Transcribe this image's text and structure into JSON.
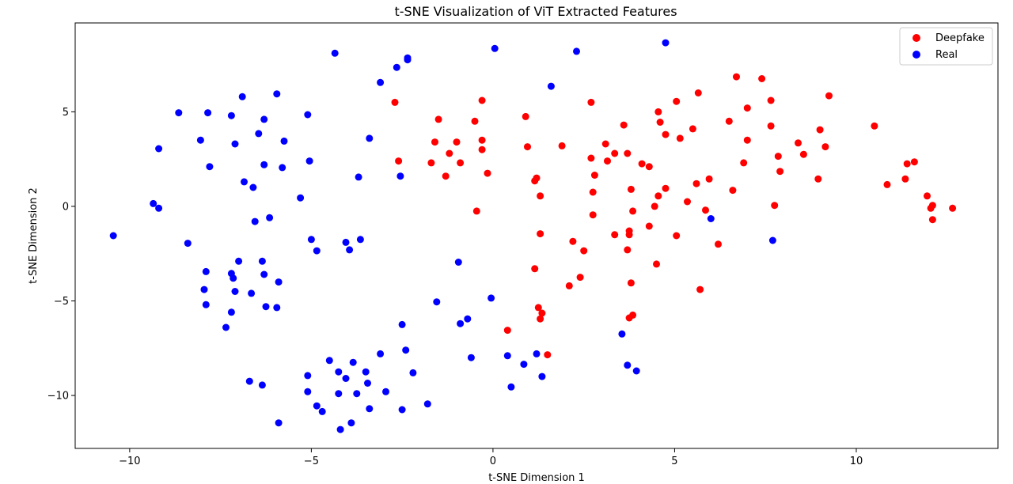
{
  "chart_data": {
    "type": "scatter",
    "title": "t-SNE Visualization of ViT Extracted Features",
    "xlabel": "t-SNE Dimension 1",
    "ylabel": "t-SNE Dimension 2",
    "xlim": [
      -11.5,
      13.9
    ],
    "ylim": [
      -12.8,
      9.7
    ],
    "xticks": [
      -10,
      -5,
      0,
      5,
      10
    ],
    "yticks": [
      -10,
      -5,
      0,
      5
    ],
    "grid": false,
    "legend_position": "top-right",
    "series": [
      {
        "name": "Deepfake",
        "color": "#ff0000",
        "points": [
          [
            -2.7,
            5.5
          ],
          [
            -2.6,
            2.4
          ],
          [
            -1.5,
            4.6
          ],
          [
            -1.6,
            3.4
          ],
          [
            -1.7,
            2.3
          ],
          [
            -1.2,
            2.8
          ],
          [
            -1.3,
            1.6
          ],
          [
            -1.0,
            3.4
          ],
          [
            -0.9,
            2.3
          ],
          [
            -0.5,
            4.5
          ],
          [
            -0.3,
            5.6
          ],
          [
            -0.3,
            3.5
          ],
          [
            -0.3,
            3.0
          ],
          [
            -0.15,
            1.75
          ],
          [
            -0.45,
            -0.25
          ],
          [
            0.9,
            4.75
          ],
          [
            0.95,
            3.15
          ],
          [
            1.15,
            1.35
          ],
          [
            1.2,
            1.5
          ],
          [
            1.3,
            0.55
          ],
          [
            1.3,
            -1.45
          ],
          [
            1.15,
            -3.3
          ],
          [
            1.25,
            -5.35
          ],
          [
            1.3,
            -5.95
          ],
          [
            1.35,
            -5.65
          ],
          [
            1.5,
            -7.85
          ],
          [
            0.4,
            -6.55
          ],
          [
            1.9,
            3.2
          ],
          [
            2.7,
            5.5
          ],
          [
            2.7,
            2.55
          ],
          [
            2.8,
            1.65
          ],
          [
            2.75,
            0.75
          ],
          [
            2.75,
            -0.45
          ],
          [
            2.2,
            -1.85
          ],
          [
            2.1,
            -4.2
          ],
          [
            2.5,
            -2.35
          ],
          [
            2.4,
            -3.75
          ],
          [
            3.1,
            3.3
          ],
          [
            3.35,
            2.8
          ],
          [
            3.15,
            2.4
          ],
          [
            3.35,
            -1.5
          ],
          [
            3.6,
            4.3
          ],
          [
            3.7,
            2.8
          ],
          [
            3.8,
            0.9
          ],
          [
            3.85,
            -0.25
          ],
          [
            3.75,
            -1.3
          ],
          [
            3.75,
            -1.5
          ],
          [
            3.7,
            -2.3
          ],
          [
            3.8,
            -4.05
          ],
          [
            3.75,
            -5.9
          ],
          [
            3.85,
            -5.75
          ],
          [
            4.1,
            2.25
          ],
          [
            4.3,
            2.1
          ],
          [
            4.3,
            -1.05
          ],
          [
            4.45,
            0.0
          ],
          [
            4.5,
            -3.05
          ],
          [
            4.55,
            5.0
          ],
          [
            4.6,
            4.45
          ],
          [
            4.55,
            0.55
          ],
          [
            4.75,
            3.8
          ],
          [
            4.75,
            0.95
          ],
          [
            5.05,
            5.55
          ],
          [
            5.15,
            3.6
          ],
          [
            5.05,
            -1.55
          ],
          [
            5.35,
            0.25
          ],
          [
            5.5,
            4.1
          ],
          [
            5.6,
            1.2
          ],
          [
            5.65,
            6.0
          ],
          [
            5.7,
            -4.4
          ],
          [
            5.85,
            -0.2
          ],
          [
            5.95,
            1.45
          ],
          [
            6.2,
            -2.0
          ],
          [
            6.5,
            4.5
          ],
          [
            6.6,
            0.85
          ],
          [
            6.7,
            6.85
          ],
          [
            6.9,
            2.3
          ],
          [
            7.0,
            5.2
          ],
          [
            7.0,
            3.5
          ],
          [
            7.4,
            6.75
          ],
          [
            7.65,
            5.6
          ],
          [
            7.65,
            4.25
          ],
          [
            7.75,
            0.05
          ],
          [
            7.85,
            2.65
          ],
          [
            7.9,
            1.85
          ],
          [
            8.4,
            3.35
          ],
          [
            8.55,
            2.75
          ],
          [
            8.95,
            1.45
          ],
          [
            9.0,
            4.05
          ],
          [
            9.15,
            3.15
          ],
          [
            9.25,
            5.85
          ],
          [
            10.5,
            4.25
          ],
          [
            10.85,
            1.15
          ],
          [
            11.35,
            1.45
          ],
          [
            11.4,
            2.25
          ],
          [
            11.6,
            2.35
          ],
          [
            11.95,
            0.55
          ],
          [
            12.05,
            -0.1
          ],
          [
            12.1,
            0.05
          ],
          [
            12.1,
            -0.7
          ],
          [
            12.65,
            -0.1
          ]
        ]
      },
      {
        "name": "Real",
        "color": "#0000ff",
        "points": [
          [
            -10.45,
            -1.55
          ],
          [
            -9.35,
            0.15
          ],
          [
            -9.2,
            3.05
          ],
          [
            -9.2,
            -0.1
          ],
          [
            -8.65,
            4.95
          ],
          [
            -8.4,
            -1.95
          ],
          [
            -8.05,
            3.5
          ],
          [
            -7.85,
            4.95
          ],
          [
            -7.8,
            2.1
          ],
          [
            -7.9,
            -3.45
          ],
          [
            -7.95,
            -4.4
          ],
          [
            -7.9,
            -5.2
          ],
          [
            -7.2,
            4.8
          ],
          [
            -7.1,
            3.3
          ],
          [
            -7.2,
            -3.55
          ],
          [
            -7.15,
            -3.8
          ],
          [
            -7.1,
            -4.5
          ],
          [
            -7.0,
            -2.9
          ],
          [
            -7.2,
            -5.6
          ],
          [
            -7.35,
            -6.4
          ],
          [
            -6.9,
            5.8
          ],
          [
            -6.85,
            1.3
          ],
          [
            -6.6,
            1.0
          ],
          [
            -6.55,
            -0.8
          ],
          [
            -6.65,
            -4.6
          ],
          [
            -6.7,
            -9.25
          ],
          [
            -6.45,
            3.85
          ],
          [
            -6.3,
            4.6
          ],
          [
            -6.3,
            2.2
          ],
          [
            -6.35,
            -2.9
          ],
          [
            -6.3,
            -3.6
          ],
          [
            -6.25,
            -5.3
          ],
          [
            -6.35,
            -9.45
          ],
          [
            -6.15,
            -0.6
          ],
          [
            -5.95,
            5.95
          ],
          [
            -5.9,
            -4.0
          ],
          [
            -5.95,
            -5.35
          ],
          [
            -5.75,
            3.45
          ],
          [
            -5.8,
            2.05
          ],
          [
            -5.9,
            -11.45
          ],
          [
            -5.3,
            0.45
          ],
          [
            -5.1,
            4.85
          ],
          [
            -5.05,
            2.4
          ],
          [
            -5.0,
            -1.75
          ],
          [
            -5.1,
            -8.95
          ],
          [
            -5.1,
            -9.8
          ],
          [
            -4.85,
            -2.35
          ],
          [
            -4.85,
            -10.55
          ],
          [
            -4.7,
            -10.85
          ],
          [
            -4.5,
            -8.15
          ],
          [
            -4.35,
            8.1
          ],
          [
            -4.25,
            -8.75
          ],
          [
            -4.25,
            -9.9
          ],
          [
            -4.2,
            -11.8
          ],
          [
            -4.05,
            -1.9
          ],
          [
            -4.05,
            -9.1
          ],
          [
            -3.95,
            -2.3
          ],
          [
            -3.85,
            -8.25
          ],
          [
            -3.9,
            -11.45
          ],
          [
            -3.7,
            1.55
          ],
          [
            -3.75,
            -9.9
          ],
          [
            -3.65,
            -1.75
          ],
          [
            -3.5,
            -8.75
          ],
          [
            -3.45,
            -9.35
          ],
          [
            -3.4,
            3.6
          ],
          [
            -3.4,
            -10.7
          ],
          [
            -3.1,
            6.55
          ],
          [
            -3.1,
            -7.8
          ],
          [
            -2.95,
            -9.8
          ],
          [
            -2.65,
            7.35
          ],
          [
            -2.55,
            1.6
          ],
          [
            -2.5,
            -6.25
          ],
          [
            -2.5,
            -10.75
          ],
          [
            -2.4,
            -7.6
          ],
          [
            -2.35,
            7.75
          ],
          [
            -2.35,
            7.85
          ],
          [
            -2.2,
            -8.8
          ],
          [
            -1.8,
            -10.45
          ],
          [
            -1.55,
            -5.05
          ],
          [
            -0.95,
            -2.95
          ],
          [
            -0.9,
            -6.2
          ],
          [
            -0.7,
            -5.95
          ],
          [
            -0.6,
            -8.0
          ],
          [
            -0.05,
            -4.85
          ],
          [
            0.05,
            8.35
          ],
          [
            0.4,
            -7.9
          ],
          [
            0.5,
            -9.55
          ],
          [
            0.85,
            -8.35
          ],
          [
            1.2,
            -7.8
          ],
          [
            1.35,
            -9.0
          ],
          [
            1.6,
            6.35
          ],
          [
            2.3,
            8.2
          ],
          [
            3.55,
            -6.75
          ],
          [
            3.7,
            -8.4
          ],
          [
            3.95,
            -8.7
          ],
          [
            4.75,
            8.65
          ],
          [
            6.0,
            -0.65
          ],
          [
            7.7,
            -1.8
          ]
        ]
      }
    ]
  }
}
